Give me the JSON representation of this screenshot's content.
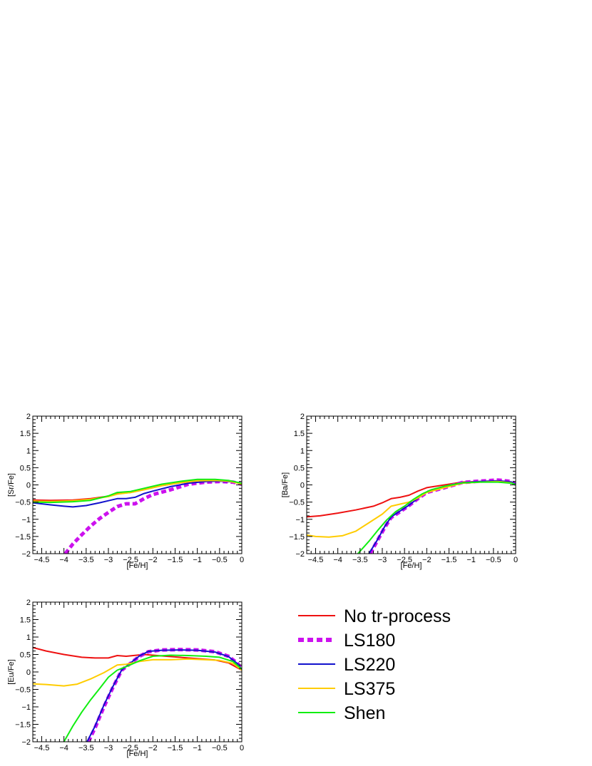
{
  "chart_data": [
    {
      "type": "line",
      "xlabel": "[Fe/H]",
      "ylabel": "[Sr/Fe]",
      "xlim": [
        -4.7,
        0
      ],
      "ylim": [
        -2,
        2
      ],
      "xticks": [
        "-4.5",
        "-4",
        "-3.5",
        "-3",
        "-2.5",
        "-2",
        "-1.5",
        "-1",
        "-0.5",
        "0"
      ],
      "yticks": [
        "-2",
        "-1.5",
        "-1",
        "-0.5",
        "0",
        "0.5",
        "1",
        "1.5",
        "2"
      ],
      "series": [
        {
          "name": "No tr-process",
          "x": [
            -4.7,
            -4.3,
            -3.8,
            -3.4,
            -3.0,
            -2.8,
            -2.5,
            -2.2,
            -1.8,
            -1.4,
            -1.0,
            -0.6,
            -0.3,
            0
          ],
          "y": [
            -0.44,
            -0.45,
            -0.44,
            -0.4,
            -0.33,
            -0.26,
            -0.22,
            -0.14,
            -0.02,
            0.06,
            0.12,
            0.13,
            0.11,
            0.03
          ]
        },
        {
          "name": "LS180",
          "x": [
            -3.97,
            -3.8,
            -3.6,
            -3.4,
            -3.2,
            -3.0,
            -2.8,
            -2.6,
            -2.4,
            -2.2,
            -2.0,
            -1.6,
            -1.2,
            -0.8,
            -0.5,
            -0.2,
            0
          ],
          "y": [
            -2.0,
            -1.72,
            -1.45,
            -1.2,
            -0.98,
            -0.8,
            -0.63,
            -0.55,
            -0.55,
            -0.4,
            -0.28,
            -0.14,
            0.02,
            0.08,
            0.1,
            0.08,
            0.02
          ]
        },
        {
          "name": "LS220",
          "x": [
            -4.7,
            -4.3,
            -4.0,
            -3.8,
            -3.5,
            -3.2,
            -3.0,
            -2.8,
            -2.6,
            -2.4,
            -2.2,
            -2.0,
            -1.6,
            -1.2,
            -0.8,
            -0.5,
            -0.2,
            0
          ],
          "y": [
            -0.52,
            -0.58,
            -0.62,
            -0.64,
            -0.6,
            -0.52,
            -0.46,
            -0.4,
            -0.4,
            -0.36,
            -0.25,
            -0.18,
            -0.05,
            0.05,
            0.1,
            0.11,
            0.09,
            0.03
          ]
        },
        {
          "name": "LS375",
          "x": [
            -4.7,
            -4.3,
            -3.8,
            -3.4,
            -3.0,
            -2.8,
            -2.5,
            -2.2,
            -1.8,
            -1.4,
            -1.0,
            -0.6,
            -0.3,
            0
          ],
          "y": [
            -0.47,
            -0.48,
            -0.46,
            -0.42,
            -0.34,
            -0.27,
            -0.22,
            -0.14,
            -0.02,
            0.06,
            0.12,
            0.13,
            0.11,
            0.03
          ]
        },
        {
          "name": "Shen",
          "x": [
            -4.7,
            -4.3,
            -3.8,
            -3.4,
            -3.0,
            -2.8,
            -2.5,
            -2.2,
            -1.8,
            -1.4,
            -1.0,
            -0.6,
            -0.3,
            0
          ],
          "y": [
            -0.5,
            -0.51,
            -0.49,
            -0.45,
            -0.32,
            -0.22,
            -0.19,
            -0.1,
            0.02,
            0.1,
            0.16,
            0.16,
            0.13,
            0.05
          ]
        }
      ]
    },
    {
      "type": "line",
      "xlabel": "[Fe/H]",
      "ylabel": "[Ba/Fe]",
      "xlim": [
        -4.7,
        0
      ],
      "ylim": [
        -2,
        2
      ],
      "xticks": [
        "-4.5",
        "-4",
        "-3.5",
        "-3",
        "-2.5",
        "-2",
        "-1.5",
        "-1",
        "-0.5",
        "0"
      ],
      "yticks": [
        "-2",
        "-1.5",
        "-1",
        "-0.5",
        "0",
        "0.5",
        "1",
        "1.5",
        "2"
      ],
      "series": [
        {
          "name": "No tr-process",
          "x": [
            -4.7,
            -4.4,
            -4.0,
            -3.6,
            -3.2,
            -3.0,
            -2.8,
            -2.6,
            -2.4,
            -2.2,
            -2.0,
            -1.6,
            -1.2,
            -0.8,
            -0.4,
            -0.1,
            0
          ],
          "y": [
            -0.93,
            -0.9,
            -0.82,
            -0.73,
            -0.62,
            -0.52,
            -0.4,
            -0.36,
            -0.3,
            -0.18,
            -0.08,
            0.0,
            0.08,
            0.1,
            0.12,
            0.08,
            0.0
          ]
        },
        {
          "name": "LS180",
          "x": [
            -3.27,
            -3.1,
            -2.95,
            -2.8,
            -2.6,
            -2.4,
            -2.2,
            -2.0,
            -1.6,
            -1.2,
            -0.8,
            -0.4,
            -0.1,
            0
          ],
          "y": [
            -2.0,
            -1.6,
            -1.25,
            -0.95,
            -0.78,
            -0.6,
            -0.4,
            -0.22,
            -0.08,
            0.07,
            0.11,
            0.14,
            0.1,
            0.02
          ]
        },
        {
          "name": "LS220",
          "x": [
            -3.3,
            -3.1,
            -2.95,
            -2.8,
            -2.6,
            -2.4,
            -2.2,
            -2.0,
            -1.6,
            -1.2,
            -0.8,
            -0.4,
            -0.1,
            0
          ],
          "y": [
            -2.0,
            -1.58,
            -1.22,
            -0.93,
            -0.76,
            -0.59,
            -0.39,
            -0.21,
            -0.07,
            0.06,
            0.1,
            0.12,
            0.09,
            0.02
          ]
        },
        {
          "name": "LS375",
          "x": [
            -4.7,
            -4.5,
            -4.2,
            -3.9,
            -3.6,
            -3.3,
            -3.0,
            -2.8,
            -2.6,
            -2.4,
            -2.2,
            -2.0,
            -1.6,
            -1.2,
            -0.8,
            -0.4,
            -0.1,
            0
          ],
          "y": [
            -1.46,
            -1.5,
            -1.52,
            -1.48,
            -1.35,
            -1.1,
            -0.85,
            -0.62,
            -0.56,
            -0.5,
            -0.38,
            -0.22,
            -0.08,
            0.05,
            0.08,
            0.1,
            0.06,
            0.0
          ]
        },
        {
          "name": "Shen",
          "x": [
            -3.55,
            -3.3,
            -3.1,
            -2.9,
            -2.7,
            -2.5,
            -2.3,
            -2.1,
            -1.9,
            -1.6,
            -1.2,
            -0.8,
            -0.4,
            -0.1,
            0
          ],
          "y": [
            -2.0,
            -1.64,
            -1.32,
            -1.02,
            -0.78,
            -0.62,
            -0.42,
            -0.26,
            -0.14,
            -0.04,
            0.06,
            0.08,
            0.08,
            0.05,
            0.0
          ]
        }
      ]
    },
    {
      "type": "line",
      "xlabel": "[Fe/H]",
      "ylabel": "[Eu/Fe]",
      "xlim": [
        -4.7,
        0
      ],
      "ylim": [
        -2,
        2
      ],
      "xticks": [
        "-4.5",
        "-4",
        "-3.5",
        "-3",
        "-2.5",
        "-2",
        "-1.5",
        "-1",
        "-0.5",
        "0"
      ],
      "yticks": [
        "-2",
        "-1.5",
        "-1",
        "-0.5",
        "0",
        "0.5",
        "1",
        "1.5",
        "2"
      ],
      "series": [
        {
          "name": "No tr-process",
          "x": [
            -4.7,
            -4.4,
            -4.0,
            -3.6,
            -3.3,
            -3.0,
            -2.8,
            -2.6,
            -2.2,
            -1.8,
            -1.4,
            -1.0,
            -0.6,
            -0.3,
            0
          ],
          "y": [
            0.7,
            0.6,
            0.5,
            0.42,
            0.4,
            0.4,
            0.47,
            0.45,
            0.5,
            0.46,
            0.42,
            0.38,
            0.34,
            0.26,
            0.05
          ]
        },
        {
          "name": "LS180",
          "x": [
            -3.45,
            -3.3,
            -3.1,
            -2.9,
            -2.7,
            -2.5,
            -2.3,
            -2.1,
            -1.8,
            -1.4,
            -1.0,
            -0.6,
            -0.3,
            -0.1,
            0
          ],
          "y": [
            -2.0,
            -1.6,
            -1.0,
            -0.45,
            0.05,
            0.25,
            0.45,
            0.58,
            0.63,
            0.64,
            0.63,
            0.58,
            0.45,
            0.25,
            0.08
          ]
        },
        {
          "name": "LS220",
          "x": [
            -3.48,
            -3.3,
            -3.1,
            -2.9,
            -2.7,
            -2.5,
            -2.3,
            -2.1,
            -1.8,
            -1.4,
            -1.0,
            -0.6,
            -0.3,
            -0.1,
            0
          ],
          "y": [
            -2.0,
            -1.55,
            -0.95,
            -0.42,
            0.06,
            0.26,
            0.46,
            0.59,
            0.62,
            0.63,
            0.62,
            0.57,
            0.44,
            0.24,
            0.07
          ]
        },
        {
          "name": "LS375",
          "x": [
            -4.7,
            -4.4,
            -4.0,
            -3.7,
            -3.4,
            -3.1,
            -2.8,
            -2.6,
            -2.3,
            -2.0,
            -1.6,
            -1.2,
            -0.8,
            -0.5,
            -0.2,
            0
          ],
          "y": [
            -0.34,
            -0.36,
            -0.4,
            -0.35,
            -0.2,
            -0.02,
            0.2,
            0.22,
            0.3,
            0.35,
            0.35,
            0.37,
            0.35,
            0.33,
            0.25,
            0.05
          ]
        },
        {
          "name": "Shen",
          "x": [
            -4.0,
            -3.8,
            -3.6,
            -3.4,
            -3.2,
            -3.0,
            -2.8,
            -2.6,
            -2.3,
            -2.0,
            -1.6,
            -1.2,
            -0.8,
            -0.5,
            -0.2,
            0
          ],
          "y": [
            -2.0,
            -1.55,
            -1.15,
            -0.8,
            -0.48,
            -0.15,
            0.05,
            0.15,
            0.32,
            0.45,
            0.48,
            0.47,
            0.45,
            0.42,
            0.3,
            0.08
          ]
        }
      ]
    }
  ],
  "legend": {
    "entries": [
      {
        "label": "No tr-process",
        "color": "#ee1111",
        "dashed": false
      },
      {
        "label": "LS180",
        "color": "#cc11ee",
        "dashed": true
      },
      {
        "label": "LS220",
        "color": "#1111cc",
        "dashed": false
      },
      {
        "label": "LS375",
        "color": "#ffcc00",
        "dashed": false
      },
      {
        "label": "Shen",
        "color": "#11ee11",
        "dashed": false
      }
    ]
  },
  "series_colors": {
    "No tr-process": "#ee1111",
    "LS180": "#cc11ee",
    "LS220": "#1111cc",
    "LS375": "#ffcc00",
    "Shen": "#11ee11"
  }
}
